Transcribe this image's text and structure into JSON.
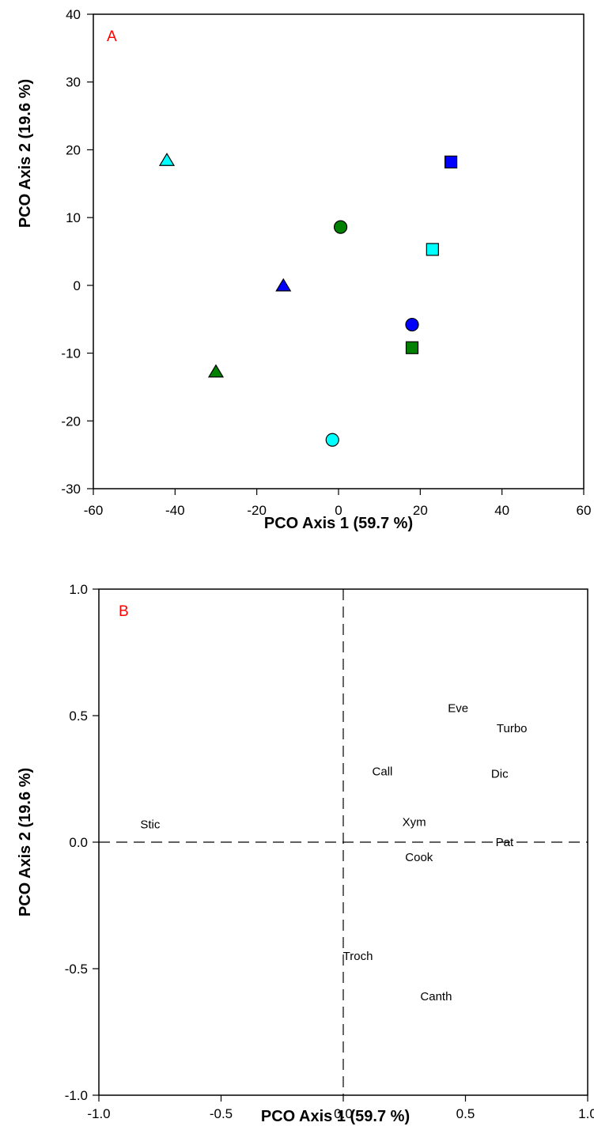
{
  "chart_data": [
    {
      "type": "scatter",
      "panel_label": "A",
      "xlabel": "PCO Axis 1 (59.7 %)",
      "ylabel": "PCO Axis 2 (19.6 %)",
      "xlim": [
        -60,
        60
      ],
      "ylim": [
        -30,
        40
      ],
      "xticks": [
        -60,
        -40,
        -20,
        0,
        20,
        40,
        60
      ],
      "yticks": [
        -30,
        -20,
        -10,
        0,
        10,
        20,
        30,
        40
      ],
      "grid": false,
      "points": [
        {
          "x": -42,
          "y": 18.5,
          "shape": "triangle",
          "color": "#00ffff"
        },
        {
          "x": -13.5,
          "y": 0,
          "shape": "triangle",
          "color": "#0000ff"
        },
        {
          "x": -30,
          "y": -12.7,
          "shape": "triangle",
          "color": "#008000"
        },
        {
          "x": 0.5,
          "y": 8.6,
          "shape": "circle",
          "color": "#008000"
        },
        {
          "x": 18,
          "y": -5.8,
          "shape": "circle",
          "color": "#0000ff"
        },
        {
          "x": -1.5,
          "y": -22.8,
          "shape": "circle",
          "color": "#00ffff"
        },
        {
          "x": 27.5,
          "y": 18.2,
          "shape": "square",
          "color": "#0000ff"
        },
        {
          "x": 23,
          "y": 5.3,
          "shape": "square",
          "color": "#00ffff"
        },
        {
          "x": 18,
          "y": -9.2,
          "shape": "square",
          "color": "#008000"
        }
      ]
    },
    {
      "type": "scatter",
      "panel_label": "B",
      "xlabel": "PCO Axis 1 (59.7 %)",
      "ylabel": "PCO Axis 2 (19.6 %)",
      "xlim": [
        -1.0,
        1.0
      ],
      "ylim": [
        -1.0,
        1.0
      ],
      "xticks": [
        "-1.0",
        "-0.5",
        "0.0",
        "0.5",
        "1.0"
      ],
      "yticks": [
        "-1.0",
        "-0.5",
        "0.0",
        "0.5",
        "1.0"
      ],
      "grid": false,
      "reference_lines": {
        "x": 0,
        "y": 0,
        "style": "dashed"
      },
      "labels": [
        {
          "text": "Eve",
          "x": 0.47,
          "y": 0.53
        },
        {
          "text": "Turbo",
          "x": 0.69,
          "y": 0.45
        },
        {
          "text": "Call",
          "x": 0.16,
          "y": 0.28
        },
        {
          "text": "Dic",
          "x": 0.64,
          "y": 0.27
        },
        {
          "text": "Stic",
          "x": -0.79,
          "y": 0.07
        },
        {
          "text": "Xym",
          "x": 0.29,
          "y": 0.08
        },
        {
          "text": "Pat",
          "x": 0.66,
          "y": 0.0
        },
        {
          "text": "Cook",
          "x": 0.31,
          "y": -0.06
        },
        {
          "text": "Troch",
          "x": 0.06,
          "y": -0.45
        },
        {
          "text": "Canth",
          "x": 0.38,
          "y": -0.61
        }
      ]
    }
  ]
}
